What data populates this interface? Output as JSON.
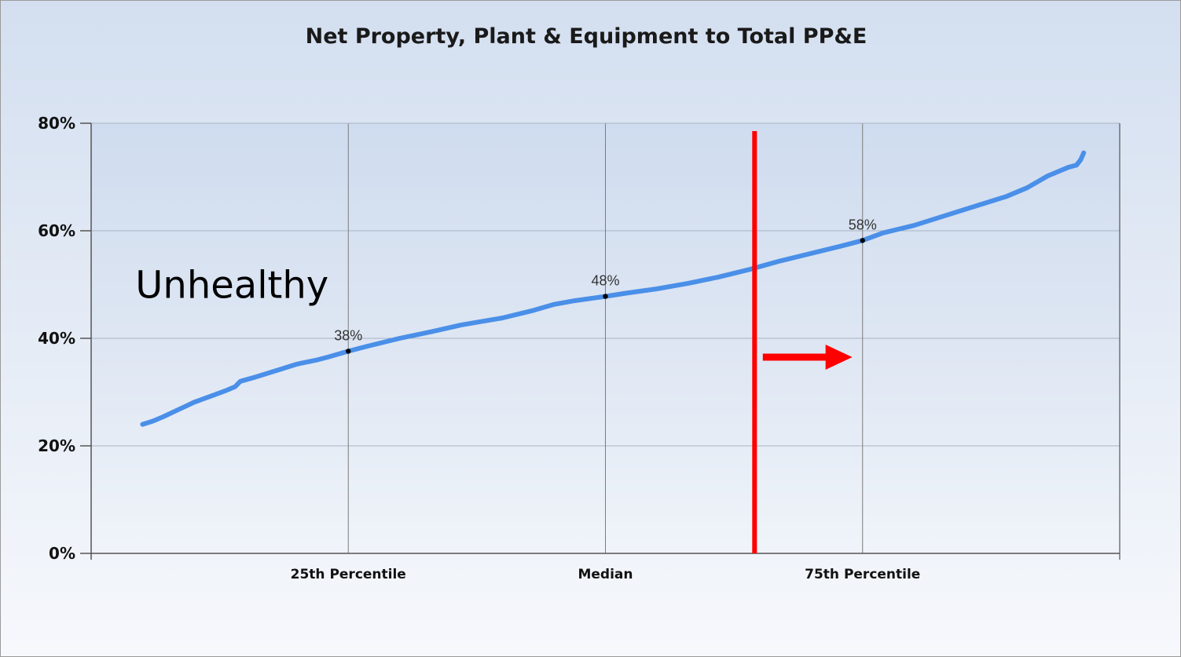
{
  "chart_data": {
    "type": "line",
    "title": "Net Property, Plant & Equipment to Total PP&E",
    "xlabel": "",
    "ylabel": "",
    "ylim": [
      0,
      80
    ],
    "yticks": [
      "0%",
      "20%",
      "40%",
      "60%",
      "80%"
    ],
    "ytick_values": [
      0,
      20,
      40,
      60,
      80
    ],
    "xlim": [
      0,
      100
    ],
    "xticks": [
      {
        "label": "25th Percentile",
        "value": 25
      },
      {
        "label": "Median",
        "value": 50
      },
      {
        "label": "75th Percentile",
        "value": 75
      }
    ],
    "grid": true,
    "series": [
      {
        "color": "#4a8fe8",
        "points": [
          [
            5,
            24
          ],
          [
            6,
            24.6
          ],
          [
            7,
            25.4
          ],
          [
            8,
            26.3
          ],
          [
            9,
            27.2
          ],
          [
            10,
            28.1
          ],
          [
            11,
            28.8
          ],
          [
            12,
            29.5
          ],
          [
            13,
            30.2
          ],
          [
            14,
            31.0
          ],
          [
            14.5,
            32.0
          ],
          [
            16,
            32.8
          ],
          [
            18,
            34.0
          ],
          [
            20,
            35.2
          ],
          [
            22,
            36.0
          ],
          [
            23,
            36.5
          ],
          [
            25,
            37.6
          ],
          [
            27,
            38.6
          ],
          [
            30,
            40.0
          ],
          [
            33,
            41.2
          ],
          [
            36,
            42.5
          ],
          [
            40,
            43.8
          ],
          [
            43,
            45.2
          ],
          [
            45,
            46.3
          ],
          [
            47,
            47.0
          ],
          [
            50,
            47.8
          ],
          [
            52,
            48.4
          ],
          [
            55,
            49.2
          ],
          [
            58,
            50.2
          ],
          [
            61,
            51.4
          ],
          [
            64,
            52.8
          ],
          [
            67,
            54.4
          ],
          [
            70,
            55.8
          ],
          [
            73,
            57.2
          ],
          [
            75,
            58.2
          ],
          [
            77,
            59.6
          ],
          [
            80,
            61.0
          ],
          [
            83,
            62.8
          ],
          [
            86,
            64.6
          ],
          [
            89,
            66.4
          ],
          [
            91,
            68.0
          ],
          [
            93,
            70.2
          ],
          [
            95,
            71.8
          ],
          [
            95.8,
            72.2
          ],
          [
            96.2,
            73.2
          ],
          [
            96.5,
            74.5
          ]
        ]
      }
    ],
    "marked_points": [
      {
        "x": 25,
        "y": 37.6,
        "label": "38%"
      },
      {
        "x": 50,
        "y": 47.8,
        "label": "48%"
      },
      {
        "x": 75,
        "y": 58.2,
        "label": "58%"
      }
    ],
    "threshold_line": {
      "x": 64.5,
      "color": "#ff0000"
    },
    "arrow": {
      "x_from": 65.3,
      "x_to": 74.0,
      "y": 36.5,
      "color": "#ff0000"
    },
    "annotation": {
      "text": "Unhealthy",
      "x": 4.3,
      "y": 47.5
    }
  }
}
